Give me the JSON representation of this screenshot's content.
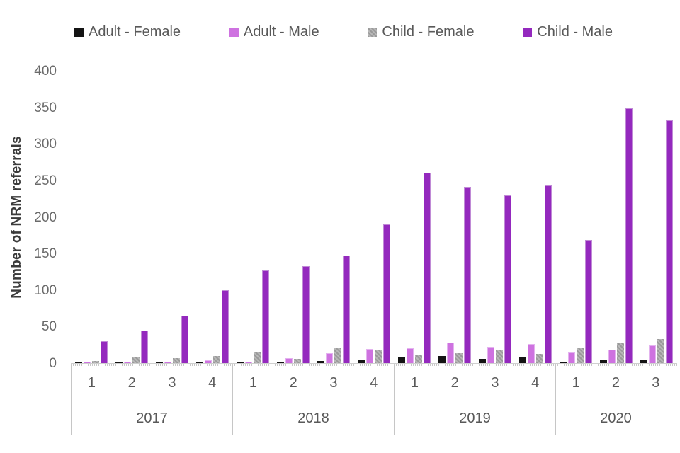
{
  "chart_data": {
    "type": "bar",
    "title": "",
    "xlabel": "",
    "ylabel": "Number of NRM referrals",
    "ylim": [
      0,
      400
    ],
    "y_ticks": [
      400,
      350,
      300,
      250,
      200,
      150,
      100,
      50,
      0
    ],
    "grid": false,
    "legend_position": "top",
    "series": [
      {
        "name": "Adult - Female",
        "color": "#141414",
        "pattern": "solid"
      },
      {
        "name": "Adult - Male",
        "color": "#ce72e0",
        "pattern": "solid"
      },
      {
        "name": "Child - Female",
        "color": "#a6a6a6",
        "pattern": "checker"
      },
      {
        "name": "Child - Male",
        "color": "#9429be",
        "pattern": "solid"
      }
    ],
    "groups": [
      {
        "year": "2017",
        "quarters": [
          {
            "label": "1",
            "values": [
              1,
              1,
              3,
              30
            ]
          },
          {
            "label": "2",
            "values": [
              1,
              2,
              8,
              45
            ]
          },
          {
            "label": "3",
            "values": [
              1,
              2,
              7,
              65
            ]
          },
          {
            "label": "4",
            "values": [
              2,
              4,
              10,
              100
            ]
          }
        ]
      },
      {
        "year": "2018",
        "quarters": [
          {
            "label": "1",
            "values": [
              1,
              2,
              15,
              127
            ]
          },
          {
            "label": "2",
            "values": [
              1,
              7,
              6,
              133
            ]
          },
          {
            "label": "3",
            "values": [
              3,
              14,
              21,
              147
            ]
          },
          {
            "label": "4",
            "values": [
              5,
              19,
              18,
              190
            ]
          }
        ]
      },
      {
        "year": "2019",
        "quarters": [
          {
            "label": "1",
            "values": [
              8,
              20,
              11,
              261
            ]
          },
          {
            "label": "2",
            "values": [
              10,
              28,
              14,
              241
            ]
          },
          {
            "label": "3",
            "values": [
              6,
              22,
              18,
              230
            ]
          },
          {
            "label": "4",
            "values": [
              8,
              26,
              13,
              243
            ]
          }
        ]
      },
      {
        "year": "2020",
        "quarters": [
          {
            "label": "1",
            "values": [
              2,
              15,
              20,
              169
            ]
          },
          {
            "label": "2",
            "values": [
              4,
              18,
              27,
              349
            ]
          },
          {
            "label": "3",
            "values": [
              5,
              24,
              33,
              332
            ]
          }
        ]
      }
    ]
  },
  "colors": {
    "axis_line": "#cfcfcf",
    "divider": "#c6c6c6",
    "tick_text": "#6a6a6a",
    "label_text": "#595959",
    "axis_title_text": "#3b3b3b"
  }
}
